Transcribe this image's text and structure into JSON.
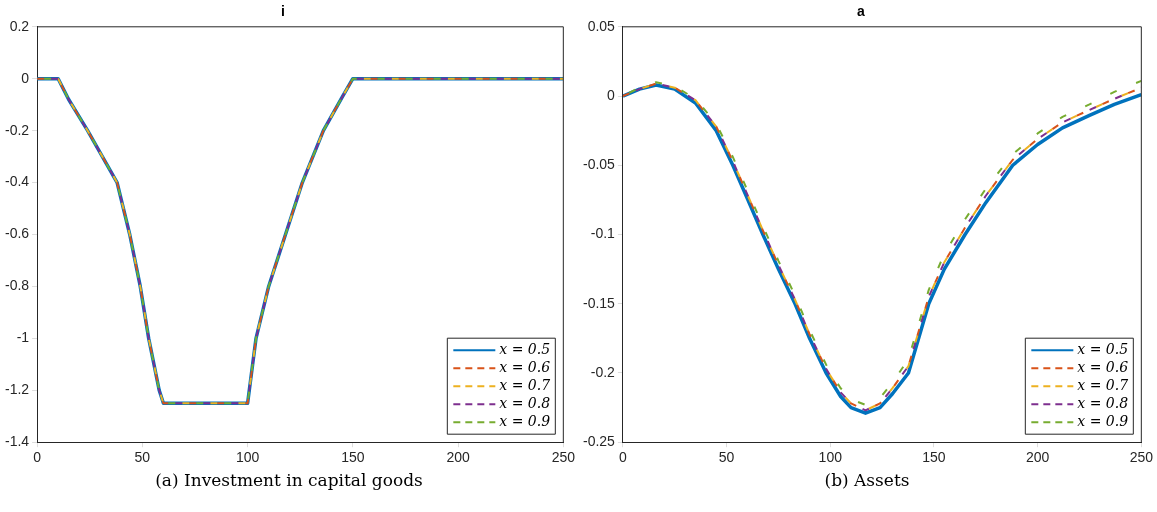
{
  "chart_data": [
    {
      "type": "line",
      "title": "i",
      "annotations": [
        "(a) Investment in capital goods"
      ],
      "legend": "bottom right",
      "grid": false,
      "x": [
        0,
        10,
        15,
        24,
        31,
        38,
        44,
        49,
        53,
        58,
        60,
        100,
        104,
        110,
        118,
        126,
        136,
        145,
        150,
        250
      ],
      "xlim": [
        0,
        250
      ],
      "xticks": [
        0,
        50,
        100,
        150,
        200,
        250
      ],
      "ylim": [
        -1.4,
        0.2
      ],
      "yticks": [
        -1.4,
        -1.2,
        -1,
        -0.8,
        -0.6,
        -0.4,
        -0.2,
        0,
        0.2
      ],
      "series": [
        {
          "name": "x = 0.5",
          "color": "#0072bd",
          "line_style": "solid",
          "values": [
            0,
            0,
            -0.08,
            -0.2,
            -0.3,
            -0.4,
            -0.6,
            -0.8,
            -1.0,
            -1.2,
            -1.25,
            -1.25,
            -1.0,
            -0.8,
            -0.6,
            -0.4,
            -0.2,
            -0.07,
            0,
            0
          ]
        },
        {
          "name": "x = 0.6",
          "color": "#d95319",
          "line_style": "dashed",
          "values": [
            0,
            0,
            -0.08,
            -0.2,
            -0.3,
            -0.4,
            -0.6,
            -0.8,
            -1.0,
            -1.2,
            -1.25,
            -1.25,
            -1.0,
            -0.8,
            -0.6,
            -0.4,
            -0.2,
            -0.07,
            0,
            0
          ]
        },
        {
          "name": "x = 0.7",
          "color": "#edb120",
          "line_style": "dashed",
          "values": [
            0,
            0,
            -0.08,
            -0.2,
            -0.3,
            -0.4,
            -0.6,
            -0.8,
            -1.0,
            -1.2,
            -1.25,
            -1.25,
            -1.0,
            -0.8,
            -0.6,
            -0.4,
            -0.2,
            -0.07,
            0,
            0
          ]
        },
        {
          "name": "x = 0.8",
          "color": "#7e2f8e",
          "line_style": "dashed",
          "values": [
            0,
            0,
            -0.08,
            -0.2,
            -0.3,
            -0.4,
            -0.6,
            -0.8,
            -1.0,
            -1.2,
            -1.25,
            -1.25,
            -1.0,
            -0.8,
            -0.6,
            -0.4,
            -0.2,
            -0.07,
            0,
            0
          ]
        },
        {
          "name": "x = 0.9",
          "color": "#77ac30",
          "line_style": "dashed",
          "values": [
            0,
            0,
            -0.08,
            -0.2,
            -0.3,
            -0.4,
            -0.6,
            -0.8,
            -1.0,
            -1.2,
            -1.25,
            -1.25,
            -1.0,
            -0.8,
            -0.6,
            -0.4,
            -0.2,
            -0.07,
            0,
            0
          ]
        }
      ]
    },
    {
      "type": "line",
      "title": "a",
      "annotations": [
        "(b) Assets"
      ],
      "legend": "bottom right",
      "grid": false,
      "x": [
        0,
        8,
        16,
        25,
        35,
        45,
        53,
        60,
        67.5,
        75,
        83,
        90,
        98,
        105,
        110,
        117,
        124,
        130,
        137.7,
        147.5,
        155,
        165,
        175,
        188,
        200,
        212,
        225,
        237,
        250
      ],
      "xlim": [
        0,
        250
      ],
      "xticks": [
        0,
        50,
        100,
        150,
        200,
        250
      ],
      "ylim": [
        -0.25,
        0.05
      ],
      "yticks": [
        -0.25,
        -0.2,
        -0.15,
        -0.1,
        -0.05,
        0,
        0.05
      ],
      "series": [
        {
          "name": "x = 0.5",
          "color": "#0072bd",
          "line_style": "solid",
          "values": [
            0,
            0.005,
            0.008,
            0.005,
            -0.005,
            -0.025,
            -0.05,
            -0.074,
            -0.1,
            -0.125,
            -0.15,
            -0.175,
            -0.2,
            -0.217,
            -0.225,
            -0.229,
            -0.225,
            -0.215,
            -0.2,
            -0.15,
            -0.125,
            -0.1,
            -0.077,
            -0.05,
            -0.035,
            -0.023,
            -0.014,
            -0.006,
            0.001
          ]
        },
        {
          "name": "x = 0.6",
          "color": "#d95319",
          "line_style": "dashed",
          "values": [
            0,
            0.005,
            0.009,
            0.006,
            -0.003,
            -0.022,
            -0.047,
            -0.071,
            -0.097,
            -0.122,
            -0.147,
            -0.172,
            -0.197,
            -0.214,
            -0.222,
            -0.227,
            -0.222,
            -0.211,
            -0.195,
            -0.145,
            -0.12,
            -0.095,
            -0.072,
            -0.046,
            -0.031,
            -0.019,
            -0.01,
            -0.002,
            0.006
          ]
        },
        {
          "name": "x = 0.7",
          "color": "#edb120",
          "line_style": "dashed",
          "values": [
            0,
            0.005,
            0.009,
            0.006,
            -0.003,
            -0.022,
            -0.047,
            -0.071,
            -0.097,
            -0.122,
            -0.147,
            -0.172,
            -0.197,
            -0.214,
            -0.222,
            -0.227,
            -0.222,
            -0.211,
            -0.195,
            -0.145,
            -0.12,
            -0.095,
            -0.072,
            -0.046,
            -0.031,
            -0.019,
            -0.01,
            -0.002,
            0.006
          ]
        },
        {
          "name": "x = 0.8",
          "color": "#7e2f8e",
          "line_style": "dashed",
          "values": [
            0,
            0.005,
            0.009,
            0.006,
            -0.003,
            -0.022,
            -0.047,
            -0.071,
            -0.097,
            -0.122,
            -0.147,
            -0.172,
            -0.197,
            -0.214,
            -0.222,
            -0.227,
            -0.222,
            -0.211,
            -0.195,
            -0.145,
            -0.12,
            -0.095,
            -0.072,
            -0.046,
            -0.031,
            -0.019,
            -0.01,
            -0.002,
            0.006
          ]
        },
        {
          "name": "x = 0.9",
          "color": "#77ac30",
          "line_style": "dashed",
          "values": [
            0,
            0.006,
            0.01,
            0.007,
            -0.002,
            -0.02,
            -0.044,
            -0.068,
            -0.094,
            -0.119,
            -0.144,
            -0.169,
            -0.194,
            -0.211,
            -0.219,
            -0.223,
            -0.218,
            -0.207,
            -0.19,
            -0.14,
            -0.114,
            -0.089,
            -0.067,
            -0.042,
            -0.027,
            -0.015,
            -0.006,
            0.003,
            0.011
          ]
        }
      ]
    }
  ]
}
